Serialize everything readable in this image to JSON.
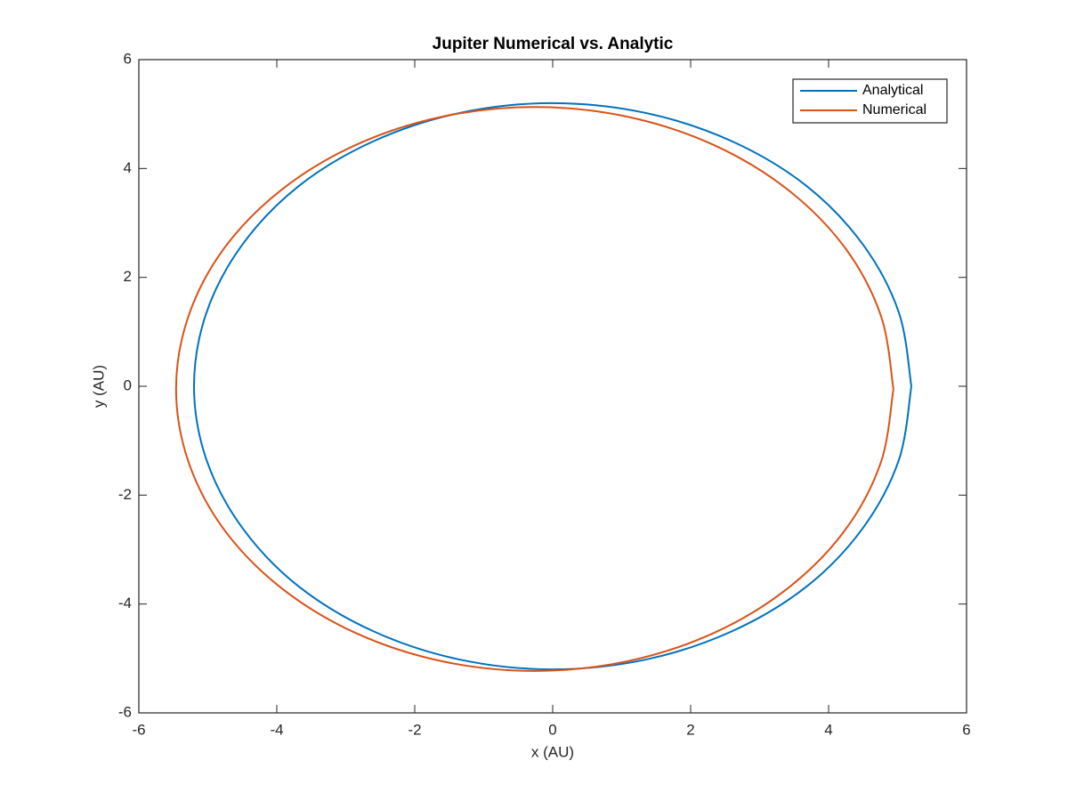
{
  "chart_data": {
    "type": "line",
    "title": "Jupiter Numerical vs. Analytic",
    "x_label": "x (AU)",
    "y_label": "y (AU)",
    "xlim": [
      -6,
      6
    ],
    "ylim": [
      -6,
      6
    ],
    "xticks": [
      -6,
      -4,
      -2,
      0,
      2,
      4,
      6
    ],
    "yticks": [
      -6,
      -4,
      -2,
      0,
      2,
      4,
      6
    ],
    "grid": false,
    "legend": "northeast",
    "series": [
      {
        "name": "Analytical",
        "color": "#0072bd",
        "x": [
          5.2,
          5.02,
          4.5,
          3.68,
          2.6,
          1.35,
          0,
          -1.35,
          -2.6,
          -3.68,
          -4.5,
          -5.02,
          -5.2,
          -5.02,
          -4.5,
          -3.68,
          -2.6,
          -1.35,
          0,
          1.35,
          2.6,
          3.68,
          4.5,
          5.02,
          5.2
        ],
        "values": [
          0,
          1.35,
          2.6,
          3.68,
          4.5,
          5.02,
          5.2,
          5.02,
          4.5,
          3.68,
          2.6,
          1.35,
          0,
          -1.35,
          -2.6,
          -3.68,
          -4.5,
          -5.02,
          -5.2,
          -5.02,
          -4.5,
          -3.68,
          -2.6,
          -1.35,
          0
        ]
      },
      {
        "name": "Numerical",
        "color": "#d95319",
        "x": [
          4.94,
          4.76,
          4.24,
          3.41,
          2.34,
          1.09,
          -0.26,
          -1.61,
          -2.86,
          -3.93,
          -4.76,
          -5.28,
          -5.46,
          -5.28,
          -4.76,
          -3.93,
          -2.86,
          -1.61,
          -0.26,
          1.09,
          2.34,
          3.41,
          4.24,
          4.76,
          4.94
        ],
        "values": [
          -0.05,
          1.29,
          2.54,
          3.61,
          4.43,
          4.95,
          5.13,
          4.95,
          4.43,
          3.61,
          2.54,
          1.29,
          -0.05,
          -1.39,
          -2.64,
          -3.71,
          -4.53,
          -5.05,
          -5.23,
          -5.05,
          -4.53,
          -3.71,
          -2.64,
          -1.39,
          -0.05
        ]
      }
    ]
  }
}
